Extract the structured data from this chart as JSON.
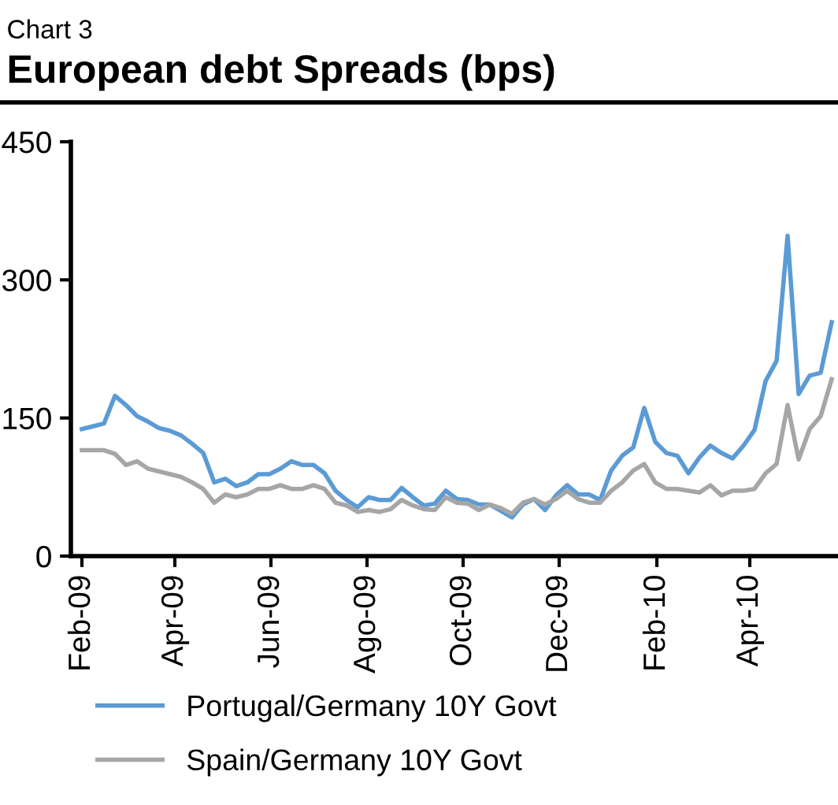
{
  "chart_data": {
    "type": "line",
    "title": "European debt Spreads (bps)",
    "annotations": [
      "Chart 3"
    ],
    "x": [
      "2009-02-01",
      "2009-02-08",
      "2009-02-15",
      "2009-02-22",
      "2009-03-01",
      "2009-03-08",
      "2009-03-15",
      "2009-03-22",
      "2009-03-29",
      "2009-04-05",
      "2009-04-12",
      "2009-04-19",
      "2009-04-26",
      "2009-05-03",
      "2009-05-10",
      "2009-05-17",
      "2009-05-24",
      "2009-05-31",
      "2009-06-07",
      "2009-06-14",
      "2009-06-21",
      "2009-06-28",
      "2009-07-05",
      "2009-07-12",
      "2009-07-19",
      "2009-07-26",
      "2009-08-02",
      "2009-08-09",
      "2009-08-16",
      "2009-08-23",
      "2009-08-30",
      "2009-09-06",
      "2009-09-13",
      "2009-09-20",
      "2009-09-27",
      "2009-10-04",
      "2009-10-11",
      "2009-10-18",
      "2009-10-25",
      "2009-11-01",
      "2009-11-08",
      "2009-11-15",
      "2009-11-22",
      "2009-11-29",
      "2009-12-06",
      "2009-12-13",
      "2009-12-20",
      "2009-12-27",
      "2010-01-03",
      "2010-01-10",
      "2010-01-17",
      "2010-01-24",
      "2010-01-31",
      "2010-02-07",
      "2010-02-14",
      "2010-02-21",
      "2010-02-28",
      "2010-03-07",
      "2010-03-14",
      "2010-03-21",
      "2010-03-28",
      "2010-04-04",
      "2010-04-11",
      "2010-04-18",
      "2010-04-25",
      "2010-05-02",
      "2010-05-09",
      "2010-05-16",
      "2010-05-23"
    ],
    "series": [
      {
        "name": "Portugal/Germany 10Y Govt",
        "color": "#5b9bd5",
        "values": [
          138,
          141,
          144,
          174,
          164,
          152,
          146,
          139,
          136,
          131,
          122,
          112,
          80,
          84,
          76,
          80,
          89,
          89,
          95,
          103,
          99,
          99,
          90,
          71,
          61,
          53,
          64,
          61,
          61,
          74,
          64,
          55,
          57,
          71,
          62,
          61,
          56,
          56,
          49,
          42,
          56,
          62,
          50,
          66,
          77,
          67,
          67,
          61,
          93,
          109,
          118,
          161,
          124,
          112,
          109,
          90,
          107,
          120,
          112,
          106,
          120,
          137,
          190,
          212,
          348,
          176,
          196,
          199,
          254
        ]
      },
      {
        "name": "Spain/Germany 10Y Govt",
        "color": "#a6a6a6",
        "values": [
          115,
          115,
          115,
          111,
          99,
          103,
          95,
          92,
          89,
          86,
          80,
          73,
          58,
          67,
          64,
          67,
          73,
          73,
          77,
          73,
          73,
          77,
          73,
          58,
          55,
          48,
          50,
          48,
          51,
          61,
          55,
          51,
          50,
          64,
          58,
          57,
          50,
          56,
          52,
          46,
          58,
          62,
          56,
          62,
          71,
          62,
          58,
          58,
          71,
          80,
          93,
          100,
          80,
          73,
          73,
          71,
          69,
          77,
          66,
          71,
          71,
          73,
          90,
          100,
          164,
          105,
          138,
          152,
          192
        ]
      }
    ],
    "xlim": [
      "2009-01-25",
      "2010-05-27"
    ],
    "xticks": [
      {
        "value": "2009-02-01",
        "label": "Feb-09"
      },
      {
        "value": "2009-04-01",
        "label": "Apr-09"
      },
      {
        "value": "2009-06-01",
        "label": "Jun-09"
      },
      {
        "value": "2009-08-01",
        "label": "Ago-09"
      },
      {
        "value": "2009-10-01",
        "label": "Oct-09"
      },
      {
        "value": "2009-12-01",
        "label": "Dec-09"
      },
      {
        "value": "2010-02-01",
        "label": "Feb-10"
      },
      {
        "value": "2010-04-01",
        "label": "Apr-10"
      }
    ],
    "ylim": [
      0,
      450
    ],
    "yticks": [
      0,
      150,
      300,
      450
    ],
    "grid": false,
    "legend": "bottom",
    "line_style": "solid"
  }
}
